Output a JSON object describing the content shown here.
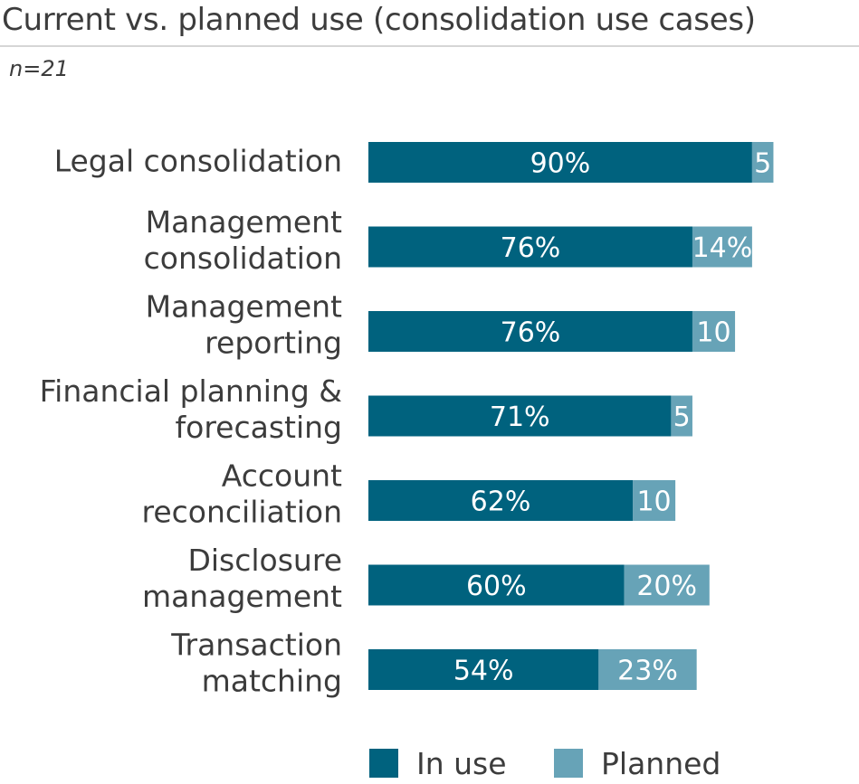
{
  "chart_data": {
    "type": "bar",
    "orientation": "horizontal",
    "stacked": true,
    "title": "Current vs. planned use (consolidation use cases)",
    "subtitle": "n=21",
    "categories": [
      [
        "Legal consolidation"
      ],
      [
        "Management",
        "consolidation"
      ],
      [
        "Management",
        "reporting"
      ],
      [
        "Financial planning &",
        "forecasting"
      ],
      [
        "Account",
        "reconciliation"
      ],
      [
        "Disclosure",
        "management"
      ],
      [
        "Transaction",
        "matching"
      ]
    ],
    "series": [
      {
        "name": "In use",
        "color": "#00627e",
        "values": [
          90,
          76,
          76,
          71,
          62,
          60,
          54
        ],
        "labels": [
          "90%",
          "76%",
          "76%",
          "71%",
          "62%",
          "60%",
          "54%"
        ]
      },
      {
        "name": "Planned",
        "color": "#67a3b7",
        "values": [
          5,
          14,
          10,
          5,
          10,
          20,
          23
        ],
        "labels": [
          "5",
          "14%",
          "10",
          "5",
          "10",
          "20%",
          "23%"
        ]
      }
    ],
    "xlim": [
      0,
      100
    ],
    "grid": false,
    "legend": "bottom"
  }
}
